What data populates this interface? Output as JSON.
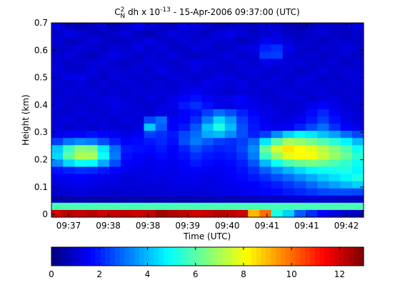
{
  "chart_data": {
    "type": "heatmap",
    "title": {
      "base": "C",
      "sup": "2",
      "sub": "N",
      "mid": " dh x 10",
      "exp": "-13",
      "tail": " - 15-Apr-2006 09:37:00 (UTC)"
    },
    "xlabel": "Time (UTC)",
    "ylabel": "Height (km)",
    "xticks": [
      "09:37",
      "09:38",
      "09:38",
      "09:39",
      "09:40",
      "09:41",
      "09:41",
      "09:42"
    ],
    "yticks": [
      "0",
      "0.1",
      "0.2",
      "0.3",
      "0.4",
      "0.5",
      "0.6",
      "0.7"
    ],
    "ylim": [
      -0.01,
      0.7
    ],
    "colorbar": {
      "ticks": [
        "0",
        "2",
        "4",
        "6",
        "8",
        "10",
        "12"
      ],
      "range": [
        0,
        13
      ],
      "colormap": "jet"
    },
    "grid": false,
    "matrix": [
      [
        1.2,
        0.9,
        0.6,
        0.8,
        1.1,
        0.7,
        1.0,
        1.4,
        1.2,
        0.9,
        0.8,
        1.3,
        1.2,
        0.9,
        0.7,
        0.9,
        1.0,
        0.8,
        1.1,
        0.9,
        0.7,
        0.6,
        0.8,
        1.0,
        0.9,
        1.0,
        1.2
      ],
      [
        1.0,
        1.3,
        1.1,
        0.9,
        0.8,
        1.0,
        1.2,
        0.9,
        0.7,
        1.0,
        1.3,
        1.1,
        1.0,
        0.9,
        1.2,
        1.4,
        1.1,
        0.9,
        1.0,
        1.2,
        0.9,
        0.8,
        1.0,
        1.1,
        0.9,
        0.8,
        1.0
      ],
      [
        1.1,
        0.8,
        0.9,
        1.2,
        1.0,
        0.8,
        0.9,
        1.1,
        1.3,
        1.0,
        0.9,
        1.2,
        1.0,
        1.2,
        1.1,
        1.0,
        0.8,
        1.0,
        1.5,
        1.3,
        1.1,
        0.9,
        1.0,
        0.8,
        1.1,
        1.0,
        0.9
      ],
      [
        0.9,
        1.0,
        1.2,
        1.0,
        0.9,
        1.1,
        1.0,
        1.3,
        1.0,
        1.2,
        1.0,
        0.9,
        1.2,
        1.1,
        0.9,
        1.0,
        1.2,
        1.3,
        2.0,
        2.2,
        1.4,
        1.0,
        0.9,
        1.1,
        1.0,
        1.2,
        1.1
      ],
      [
        1.0,
        1.2,
        1.0,
        0.8,
        1.1,
        1.3,
        1.1,
        0.9,
        1.1,
        1.0,
        1.2,
        1.0,
        0.9,
        1.0,
        1.1,
        1.2,
        1.0,
        1.1,
        2.3,
        2.4,
        1.2,
        1.0,
        1.1,
        0.9,
        1.0,
        1.1,
        0.9
      ],
      [
        1.1,
        0.9,
        1.0,
        1.1,
        1.2,
        1.0,
        0.9,
        1.0,
        1.2,
        1.1,
        0.9,
        1.1,
        1.3,
        1.2,
        1.0,
        1.1,
        1.2,
        1.0,
        1.4,
        1.3,
        1.1,
        1.2,
        1.0,
        1.0,
        1.1,
        0.9,
        1.0
      ],
      [
        1.2,
        1.0,
        0.9,
        1.2,
        1.0,
        1.1,
        1.0,
        1.2,
        1.0,
        1.3,
        1.1,
        1.0,
        1.2,
        1.0,
        1.1,
        0.9,
        1.1,
        1.2,
        1.1,
        1.0,
        1.2,
        0.9,
        1.0,
        1.2,
        1.0,
        1.1,
        1.0
      ],
      [
        1.0,
        1.3,
        1.4,
        1.1,
        0.9,
        1.2,
        1.1,
        1.0,
        1.1,
        1.0,
        1.2,
        1.1,
        1.0,
        1.1,
        1.3,
        1.2,
        1.0,
        1.1,
        1.0,
        1.2,
        1.0,
        1.1,
        1.2,
        1.0,
        0.9,
        1.1,
        1.2
      ],
      [
        1.1,
        1.0,
        1.2,
        1.0,
        1.1,
        1.0,
        1.2,
        1.1,
        1.0,
        1.1,
        1.0,
        1.2,
        1.1,
        1.4,
        1.2,
        1.1,
        1.3,
        1.0,
        1.2,
        1.1,
        1.0,
        1.2,
        1.1,
        1.0,
        1.1,
        1.0,
        1.1
      ],
      [
        1.0,
        1.2,
        1.1,
        1.2,
        1.0,
        1.1,
        1.0,
        1.2,
        1.1,
        1.2,
        1.1,
        1.3,
        1.5,
        1.2,
        1.1,
        1.0,
        1.2,
        1.1,
        1.0,
        1.1,
        1.2,
        1.0,
        1.1,
        1.2,
        1.0,
        1.1,
        1.0
      ],
      [
        1.1,
        1.1,
        1.0,
        1.1,
        1.2,
        1.2,
        1.1,
        1.0,
        1.2,
        1.1,
        1.3,
        1.6,
        1.8,
        1.5,
        1.3,
        1.4,
        1.6,
        1.2,
        1.1,
        1.0,
        1.1,
        1.2,
        1.0,
        1.1,
        1.2,
        1.0,
        1.1
      ],
      [
        1.2,
        1.0,
        1.1,
        1.0,
        1.1,
        1.3,
        1.2,
        1.1,
        1.0,
        1.2,
        1.4,
        1.9,
        2.2,
        1.8,
        1.4,
        1.3,
        1.5,
        1.3,
        1.2,
        1.1,
        1.0,
        1.1,
        1.4,
        1.6,
        1.3,
        1.1,
        1.0
      ],
      [
        1.0,
        1.1,
        1.2,
        1.1,
        1.0,
        1.2,
        1.1,
        1.2,
        1.1,
        1.3,
        1.2,
        1.6,
        1.8,
        2.4,
        3.0,
        2.6,
        2.0,
        1.6,
        1.3,
        1.2,
        1.1,
        1.2,
        1.7,
        2.1,
        1.6,
        1.2,
        1.1
      ],
      [
        1.1,
        1.2,
        1.0,
        1.2,
        1.1,
        1.0,
        1.2,
        1.1,
        2.5,
        3.0,
        1.5,
        1.6,
        2.2,
        3.2,
        4.4,
        3.6,
        2.4,
        1.8,
        1.4,
        1.2,
        1.3,
        1.5,
        1.9,
        2.4,
        1.8,
        1.3,
        1.1
      ],
      [
        1.2,
        1.0,
        1.1,
        1.0,
        1.2,
        1.1,
        1.0,
        1.2,
        4.2,
        2.8,
        1.6,
        1.9,
        2.7,
        4.1,
        5.2,
        4.0,
        2.6,
        1.9,
        1.6,
        1.4,
        1.5,
        2.0,
        2.5,
        3.0,
        2.2,
        1.6,
        1.3
      ],
      [
        1.4,
        1.5,
        1.6,
        1.8,
        1.6,
        1.5,
        1.3,
        1.5,
        2.4,
        2.2,
        1.9,
        2.5,
        3.0,
        3.8,
        4.0,
        3.4,
        2.6,
        2.0,
        2.4,
        3.4,
        4.3,
        4.8,
        4.6,
        4.1,
        3.7,
        3.0,
        2.5
      ],
      [
        2.4,
        3.1,
        3.4,
        3.2,
        2.6,
        2.0,
        1.6,
        1.7,
        1.9,
        2.1,
        1.8,
        2.6,
        3.2,
        2.8,
        2.4,
        2.2,
        2.4,
        3.0,
        4.6,
        6.0,
        7.0,
        6.8,
        6.4,
        5.9,
        5.4,
        4.8,
        4.0
      ],
      [
        4.2,
        5.6,
        6.6,
        6.4,
        4.6,
        3.0,
        1.9,
        1.8,
        1.7,
        1.9,
        1.6,
        2.0,
        2.6,
        2.2,
        2.0,
        2.1,
        2.5,
        3.4,
        6.2,
        7.6,
        8.4,
        8.1,
        7.8,
        7.2,
        6.6,
        5.9,
        5.0
      ],
      [
        4.4,
        6.0,
        7.1,
        7.0,
        5.0,
        3.2,
        1.8,
        1.6,
        1.5,
        1.7,
        1.5,
        1.8,
        2.2,
        1.9,
        1.8,
        1.9,
        2.3,
        3.2,
        5.6,
        6.8,
        7.8,
        8.1,
        8.0,
        7.4,
        6.8,
        6.2,
        5.4
      ],
      [
        3.4,
        4.4,
        5.0,
        4.9,
        3.8,
        2.6,
        1.6,
        1.5,
        1.4,
        1.5,
        1.4,
        1.6,
        1.9,
        1.7,
        1.6,
        1.7,
        2.0,
        2.7,
        4.0,
        5.0,
        5.8,
        6.2,
        6.4,
        6.2,
        5.8,
        5.5,
        5.0
      ],
      [
        1.8,
        2.0,
        2.2,
        2.1,
        1.9,
        1.6,
        1.4,
        1.3,
        1.3,
        1.4,
        1.3,
        1.5,
        1.6,
        1.5,
        1.4,
        1.6,
        1.8,
        2.2,
        2.8,
        3.4,
        3.9,
        4.4,
        4.8,
        5.0,
        5.1,
        5.2,
        4.8
      ],
      [
        1.4,
        1.5,
        1.6,
        1.5,
        1.4,
        1.3,
        1.2,
        1.2,
        1.3,
        1.2,
        1.3,
        1.4,
        1.4,
        1.3,
        1.4,
        1.5,
        1.7,
        1.9,
        2.2,
        2.6,
        3.0,
        3.4,
        3.8,
        4.2,
        4.5,
        4.8,
        5.2
      ],
      [
        1.2,
        1.3,
        1.4,
        1.3,
        1.2,
        1.2,
        1.1,
        1.2,
        1.1,
        1.2,
        1.2,
        1.3,
        1.3,
        1.2,
        1.3,
        1.4,
        1.5,
        1.6,
        1.8,
        2.0,
        2.3,
        2.6,
        3.0,
        3.4,
        3.7,
        4.0,
        4.3
      ],
      [
        1.0,
        1.1,
        1.2,
        1.1,
        1.1,
        1.0,
        1.1,
        1.0,
        1.1,
        1.1,
        1.2,
        1.2,
        1.1,
        1.2,
        1.2,
        1.3,
        1.4,
        1.5,
        1.6,
        1.7,
        1.9,
        2.1,
        2.3,
        2.5,
        2.6,
        2.6,
        2.5
      ],
      [
        0.6,
        0.6,
        0.7,
        0.6,
        0.6,
        0.7,
        0.6,
        0.7,
        0.6,
        0.7,
        0.7,
        0.6,
        0.7,
        0.7,
        0.8,
        0.7,
        0.8,
        0.8,
        0.9,
        0.9,
        1.0,
        1.0,
        1.1,
        1.0,
        1.0,
        0.9,
        0.9
      ],
      [
        5.8,
        5.8,
        5.8,
        5.8,
        5.8,
        5.8,
        5.8,
        5.8,
        5.8,
        5.8,
        5.8,
        5.8,
        5.8,
        5.8,
        5.8,
        5.8,
        5.8,
        5.8,
        5.8,
        5.8,
        5.8,
        5.8,
        5.8,
        5.8,
        5.8,
        5.8,
        5.8
      ],
      [
        12.0,
        12.2,
        12.1,
        12.3,
        12.0,
        12.1,
        12.2,
        12.0,
        12.1,
        12.6,
        12.4,
        12.2,
        12.0,
        12.1,
        12.3,
        12.2,
        12.0,
        9.0,
        10.0,
        5.2,
        4.3,
        2.8,
        2.2,
        1.6,
        1.2,
        1.0,
        0.8
      ]
    ]
  }
}
